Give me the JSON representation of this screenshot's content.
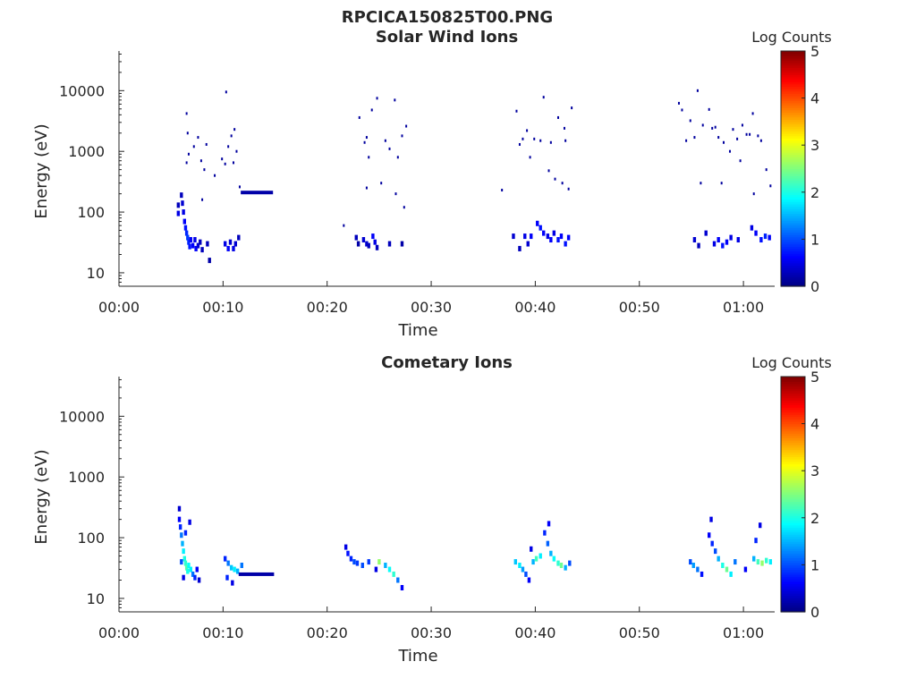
{
  "figure_title": "RPCICA150825T00.PNG",
  "colors": {
    "colormap": [
      "#00007f",
      "#0000ff",
      "#007fff",
      "#00ffff",
      "#7fff7f",
      "#ffff00",
      "#ff7f00",
      "#ff0000",
      "#7f0000"
    ]
  },
  "chart_data": [
    {
      "type": "heatmap",
      "title": "Solar Wind Ions",
      "xlabel": "Time",
      "ylabel": "Energy (eV)",
      "xlim": [
        "00:00",
        "01:03"
      ],
      "ylim": [
        6,
        45000
      ],
      "yscale": "log",
      "xticks": [
        "00:00",
        "00:10",
        "00:20",
        "00:30",
        "00:40",
        "00:50",
        "01:00"
      ],
      "yticks": [
        "10",
        "100",
        "1000",
        "10000"
      ],
      "colorbar": {
        "label": "Log Counts",
        "range": [
          0,
          5
        ],
        "ticks": [
          "0",
          "1",
          "2",
          "3",
          "4",
          "5"
        ]
      },
      "time_unit": "minutes",
      "cells": [
        [
          5.7,
          130,
          0.3
        ],
        [
          5.7,
          95,
          0.5
        ],
        [
          6.0,
          190,
          0.3
        ],
        [
          6.1,
          140,
          0.4
        ],
        [
          6.2,
          100,
          0.5
        ],
        [
          6.3,
          70,
          0.6
        ],
        [
          6.4,
          55,
          0.7
        ],
        [
          6.5,
          45,
          0.8
        ],
        [
          6.6,
          38,
          0.9
        ],
        [
          6.7,
          32,
          0.8
        ],
        [
          6.8,
          27,
          0.7
        ],
        [
          6.9,
          35,
          0.6
        ],
        [
          7.1,
          28,
          0.6
        ],
        [
          7.3,
          35,
          0.5
        ],
        [
          7.4,
          25,
          0.6
        ],
        [
          7.6,
          28,
          0.4
        ],
        [
          7.8,
          32,
          0.3
        ],
        [
          8.0,
          24,
          0.3
        ],
        [
          8.5,
          30,
          0.3
        ],
        [
          8.7,
          16,
          0.2
        ],
        [
          10.2,
          30,
          0.5
        ],
        [
          10.5,
          25,
          0.6
        ],
        [
          10.7,
          32,
          0.4
        ],
        [
          11.0,
          25,
          0.5
        ],
        [
          11.2,
          30,
          0.4
        ],
        [
          11.5,
          38,
          0.3
        ],
        [
          22.8,
          38,
          0.3
        ],
        [
          23.0,
          30,
          0.2
        ],
        [
          23.5,
          35,
          0.4
        ],
        [
          23.8,
          30,
          0.4
        ],
        [
          24.0,
          28,
          0.3
        ],
        [
          24.4,
          40,
          0.6
        ],
        [
          24.6,
          32,
          0.5
        ],
        [
          24.8,
          26,
          0.3
        ],
        [
          26.0,
          30,
          0.3
        ],
        [
          27.2,
          30,
          0.2
        ],
        [
          37.9,
          40,
          0.4
        ],
        [
          38.5,
          25,
          0.3
        ],
        [
          39.0,
          40,
          0.5
        ],
        [
          39.3,
          30,
          0.4
        ],
        [
          39.6,
          40,
          0.6
        ],
        [
          40.2,
          65,
          0.6
        ],
        [
          40.5,
          55,
          0.7
        ],
        [
          40.8,
          45,
          0.6
        ],
        [
          41.2,
          40,
          0.5
        ],
        [
          41.5,
          35,
          0.6
        ],
        [
          41.8,
          45,
          0.5
        ],
        [
          42.2,
          35,
          0.7
        ],
        [
          42.5,
          40,
          0.6
        ],
        [
          42.9,
          30,
          0.7
        ],
        [
          43.2,
          38,
          0.6
        ],
        [
          55.3,
          35,
          0.4
        ],
        [
          55.7,
          28,
          0.3
        ],
        [
          56.4,
          45,
          0.4
        ],
        [
          57.2,
          30,
          0.5
        ],
        [
          57.6,
          35,
          0.6
        ],
        [
          58.0,
          28,
          0.7
        ],
        [
          58.4,
          32,
          0.6
        ],
        [
          58.8,
          38,
          0.5
        ],
        [
          59.5,
          35,
          0.5
        ],
        [
          60.8,
          55,
          0.5
        ],
        [
          61.2,
          45,
          0.6
        ],
        [
          61.7,
          35,
          0.7
        ],
        [
          62.1,
          40,
          0.8
        ],
        [
          62.5,
          38,
          0.6
        ]
      ],
      "streaks": [
        [
          11.7,
          14.8,
          210,
          0.2
        ]
      ],
      "speckles": [
        [
          6.5,
          4200
        ],
        [
          6.6,
          2000
        ],
        [
          6.5,
          650
        ],
        [
          6.7,
          900
        ],
        [
          7.2,
          1200
        ],
        [
          7.6,
          1700
        ],
        [
          8.2,
          500
        ],
        [
          8.4,
          1300
        ],
        [
          7.9,
          700
        ],
        [
          8.0,
          160
        ],
        [
          9.2,
          400
        ],
        [
          9.9,
          750
        ],
        [
          10.2,
          620
        ],
        [
          10.5,
          1200
        ],
        [
          10.8,
          1800
        ],
        [
          11.1,
          2300
        ],
        [
          11.3,
          1000
        ],
        [
          11.6,
          260
        ],
        [
          10.3,
          9500
        ],
        [
          11.0,
          650
        ],
        [
          21.6,
          60
        ],
        [
          23.1,
          3600
        ],
        [
          23.6,
          1400
        ],
        [
          23.8,
          1700
        ],
        [
          23.8,
          250
        ],
        [
          24.0,
          800
        ],
        [
          24.3,
          4800
        ],
        [
          24.8,
          7500
        ],
        [
          25.2,
          300
        ],
        [
          25.6,
          1500
        ],
        [
          26.0,
          1100
        ],
        [
          26.5,
          7000
        ],
        [
          26.8,
          800
        ],
        [
          27.2,
          1800
        ],
        [
          27.6,
          2600
        ],
        [
          27.4,
          120
        ],
        [
          26.6,
          200
        ],
        [
          36.8,
          230
        ],
        [
          38.2,
          4600
        ],
        [
          38.5,
          1300
        ],
        [
          38.8,
          1600
        ],
        [
          39.2,
          2200
        ],
        [
          39.5,
          800
        ],
        [
          39.9,
          1600
        ],
        [
          40.5,
          1500
        ],
        [
          40.8,
          7800
        ],
        [
          41.3,
          480
        ],
        [
          41.9,
          350
        ],
        [
          42.2,
          3600
        ],
        [
          42.8,
          2400
        ],
        [
          42.9,
          1500
        ],
        [
          43.2,
          240
        ],
        [
          43.5,
          5200
        ],
        [
          42.6,
          300
        ],
        [
          41.5,
          1400
        ],
        [
          53.8,
          6200
        ],
        [
          54.1,
          4800
        ],
        [
          54.5,
          1500
        ],
        [
          54.9,
          3200
        ],
        [
          55.3,
          1700
        ],
        [
          55.6,
          10000
        ],
        [
          55.9,
          300
        ],
        [
          56.1,
          2700
        ],
        [
          56.7,
          4900
        ],
        [
          57.0,
          2400
        ],
        [
          57.3,
          2500
        ],
        [
          57.6,
          1700
        ],
        [
          58.1,
          1400
        ],
        [
          58.7,
          1000
        ],
        [
          59.0,
          2300
        ],
        [
          59.4,
          1600
        ],
        [
          59.7,
          700
        ],
        [
          59.9,
          2700
        ],
        [
          60.3,
          1900
        ],
        [
          60.6,
          1900
        ],
        [
          60.9,
          4200
        ],
        [
          61.4,
          1800
        ],
        [
          61.7,
          1500
        ],
        [
          62.2,
          500
        ],
        [
          62.6,
          270
        ],
        [
          61.0,
          200
        ],
        [
          57.9,
          300
        ]
      ]
    },
    {
      "type": "heatmap",
      "title": "Cometary Ions",
      "xlabel": "Time",
      "ylabel": "Energy (eV)",
      "xlim": [
        "00:00",
        "01:03"
      ],
      "ylim": [
        6,
        45000
      ],
      "yscale": "log",
      "xticks": [
        "00:00",
        "00:10",
        "00:20",
        "00:30",
        "00:40",
        "00:50",
        "01:00"
      ],
      "yticks": [
        "10",
        "100",
        "1000",
        "10000"
      ],
      "colorbar": {
        "label": "Log Counts",
        "range": [
          0,
          5
        ],
        "ticks": [
          "0",
          "1",
          "2",
          "3",
          "4",
          "5"
        ]
      },
      "time_unit": "minutes",
      "cells": [
        [
          5.8,
          300,
          0.4
        ],
        [
          5.8,
          200,
          0.6
        ],
        [
          5.9,
          150,
          0.8
        ],
        [
          6.0,
          110,
          1.2
        ],
        [
          6.1,
          80,
          1.5
        ],
        [
          6.2,
          60,
          1.8
        ],
        [
          6.3,
          45,
          2.0
        ],
        [
          6.4,
          38,
          2.1
        ],
        [
          6.5,
          32,
          2.3
        ],
        [
          6.6,
          28,
          2.0
        ],
        [
          6.7,
          35,
          1.9
        ],
        [
          6.9,
          30,
          1.8
        ],
        [
          7.1,
          25,
          1.2
        ],
        [
          7.3,
          22,
          0.8
        ],
        [
          7.5,
          30,
          0.6
        ],
        [
          7.7,
          20,
          0.4
        ],
        [
          6.2,
          22,
          0.5
        ],
        [
          6.0,
          40,
          1.0
        ],
        [
          6.4,
          120,
          0.8
        ],
        [
          6.8,
          180,
          0.5
        ],
        [
          10.2,
          45,
          0.8
        ],
        [
          10.5,
          38,
          1.2
        ],
        [
          10.8,
          32,
          1.6
        ],
        [
          11.1,
          30,
          1.8
        ],
        [
          11.4,
          28,
          1.5
        ],
        [
          11.8,
          35,
          1.2
        ],
        [
          10.4,
          22,
          0.8
        ],
        [
          10.9,
          18,
          0.5
        ],
        [
          21.8,
          70,
          0.5
        ],
        [
          22.0,
          55,
          0.7
        ],
        [
          22.3,
          45,
          0.8
        ],
        [
          22.6,
          40,
          1.0
        ],
        [
          22.9,
          38,
          0.9
        ],
        [
          23.4,
          35,
          1.0
        ],
        [
          24.0,
          40,
          0.9
        ],
        [
          25.0,
          40,
          2.6
        ],
        [
          25.6,
          35,
          1.5
        ],
        [
          26.0,
          30,
          1.9
        ],
        [
          26.4,
          25,
          2.1
        ],
        [
          26.8,
          20,
          1.2
        ],
        [
          27.2,
          15,
          0.6
        ],
        [
          24.7,
          30,
          0.5
        ],
        [
          38.1,
          40,
          1.6
        ],
        [
          38.5,
          35,
          1.8
        ],
        [
          38.8,
          30,
          1.4
        ],
        [
          39.1,
          25,
          1.0
        ],
        [
          39.4,
          20,
          0.6
        ],
        [
          39.8,
          40,
          1.5
        ],
        [
          40.1,
          45,
          2.2
        ],
        [
          40.5,
          50,
          1.8
        ],
        [
          40.9,
          120,
          0.8
        ],
        [
          41.2,
          80,
          1.1
        ],
        [
          41.5,
          55,
          1.5
        ],
        [
          41.8,
          45,
          1.9
        ],
        [
          42.2,
          38,
          2.1
        ],
        [
          42.5,
          35,
          2.4
        ],
        [
          42.9,
          32,
          1.5
        ],
        [
          43.3,
          38,
          1.0
        ],
        [
          41.3,
          170,
          0.6
        ],
        [
          39.6,
          65,
          0.5
        ],
        [
          54.9,
          40,
          1.0
        ],
        [
          55.2,
          35,
          1.4
        ],
        [
          55.6,
          30,
          1.2
        ],
        [
          56.0,
          25,
          0.7
        ],
        [
          56.7,
          110,
          0.6
        ],
        [
          57.0,
          80,
          0.8
        ],
        [
          57.3,
          60,
          1.0
        ],
        [
          57.6,
          45,
          1.5
        ],
        [
          58.0,
          35,
          2.0
        ],
        [
          58.4,
          30,
          2.4
        ],
        [
          58.8,
          25,
          1.8
        ],
        [
          59.2,
          40,
          1.2
        ],
        [
          61.0,
          45,
          1.5
        ],
        [
          61.4,
          40,
          2.2
        ],
        [
          61.8,
          38,
          2.6
        ],
        [
          62.2,
          42,
          2.1
        ],
        [
          62.6,
          40,
          1.8
        ],
        [
          61.2,
          90,
          0.8
        ],
        [
          61.6,
          160,
          0.5
        ],
        [
          56.9,
          200,
          0.5
        ],
        [
          60.2,
          30,
          0.6
        ]
      ],
      "streaks": [
        [
          11.5,
          14.9,
          25,
          0.2
        ]
      ]
    }
  ]
}
